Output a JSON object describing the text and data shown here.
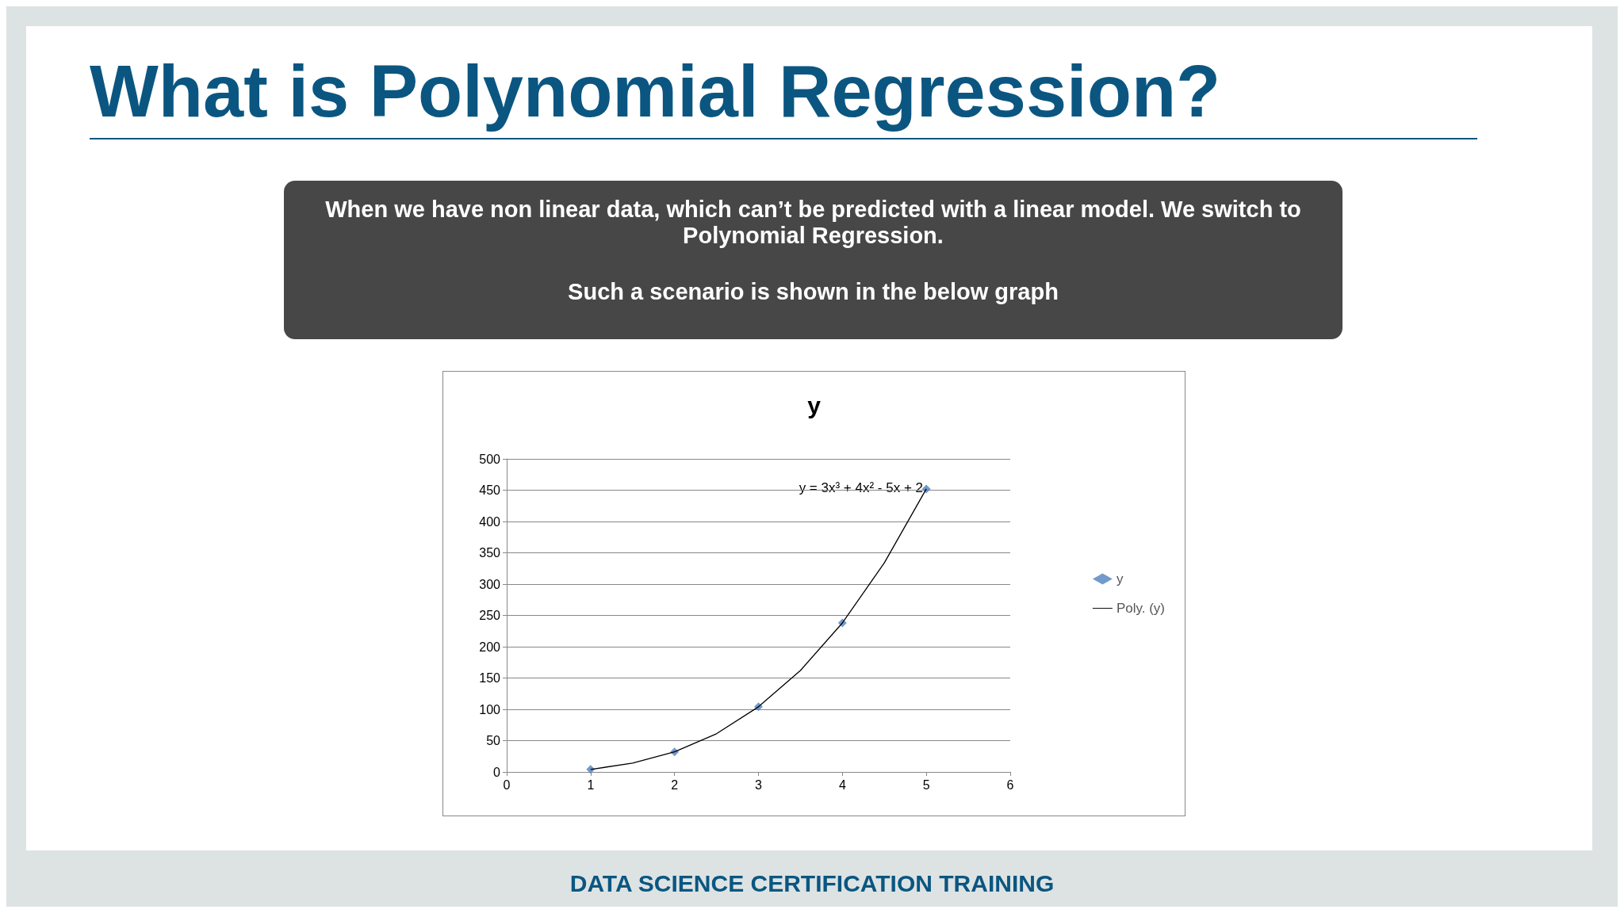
{
  "chart_data": {
    "type": "scatter",
    "title": "y",
    "annotations": [
      "What is Polynomial Regression?",
      "When we have non linear data, which can’t be predicted with a linear model. We switch to Polynomial Regression.",
      "Such a scenario is shown in the below graph",
      "y = 3x³ + 4x² - 5x + 2",
      "DATA SCIENCE CERTIFICATION TRAINING"
    ],
    "series": [
      {
        "name": "y",
        "color": "#4f81bd",
        "marker": "diamond",
        "x": [
          1,
          2,
          3,
          4,
          5
        ],
        "values": [
          4,
          32,
          104,
          238,
          452
        ]
      },
      {
        "name": "Poly. (y)",
        "type": "line",
        "color": "#000000",
        "marker": "none",
        "x": [
          1,
          1.5,
          2,
          2.5,
          3,
          3.5,
          4,
          4.5,
          5
        ],
        "values": [
          4,
          14,
          32,
          61,
          104,
          162,
          238,
          334,
          452
        ]
      }
    ],
    "xlim": [
      0,
      6
    ],
    "xticks": [
      0,
      1,
      2,
      3,
      4,
      5,
      6
    ],
    "ylim": [
      0,
      500
    ],
    "yticks": [
      0,
      50,
      100,
      150,
      200,
      250,
      300,
      350,
      400,
      450,
      500
    ],
    "grid": "y",
    "legend": "right"
  }
}
